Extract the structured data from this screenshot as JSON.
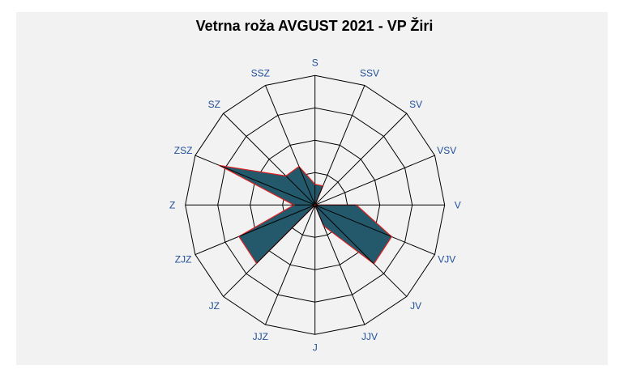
{
  "chart_data": {
    "type": "radar",
    "title": "Vetrna roža AVGUST 2021 - VP Žiri",
    "categories": [
      "S",
      "SSV",
      "SV",
      "VSV",
      "V",
      "VJV",
      "JV",
      "JJV",
      "J",
      "JJZ",
      "JZ",
      "ZJZ",
      "Z",
      "ZSZ",
      "SZ",
      "SSZ"
    ],
    "values": [
      0.64,
      0.64,
      0,
      0,
      1.28,
      2.56,
      2.57,
      0.7,
      0,
      0,
      2.55,
      2.54,
      0.65,
      3.19,
      1.27,
      1.29
    ],
    "rmax": 4,
    "rings": 4,
    "grid": true,
    "legend": "none",
    "colors": {
      "fill": "#23596a",
      "stroke": "#e02020",
      "grid": "#000000",
      "label": "#1f4e9a"
    }
  }
}
